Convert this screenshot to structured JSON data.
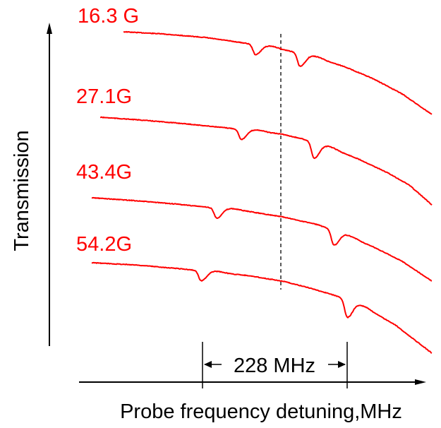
{
  "chart_data": {
    "type": "line",
    "title": "",
    "xlabel": "Probe frequency detuning,MHz",
    "ylabel": "Transmission",
    "colors": {
      "curve": "#ff0000",
      "axis": "#000000"
    },
    "annotation": {
      "label": "228 MHz"
    },
    "series": [
      {
        "name": "16.3 G",
        "dips": [
          {
            "x": 362,
            "depth": 14
          },
          {
            "x": 425,
            "depth": 18
          }
        ],
        "points": [
          [
            175,
            45
          ],
          [
            230,
            48
          ],
          [
            290,
            53
          ],
          [
            340,
            60
          ],
          [
            380,
            66
          ],
          [
            410,
            72
          ],
          [
            450,
            82
          ],
          [
            490,
            95
          ],
          [
            530,
            112
          ],
          [
            570,
            133
          ],
          [
            612,
            162
          ]
        ]
      },
      {
        "name": "27.1G",
        "dips": [
          {
            "x": 342,
            "depth": 14
          },
          {
            "x": 445,
            "depth": 22
          }
        ],
        "points": [
          [
            142,
            166
          ],
          [
            200,
            170
          ],
          [
            260,
            175
          ],
          [
            310,
            180
          ],
          [
            360,
            185
          ],
          [
            400,
            190
          ],
          [
            430,
            197
          ],
          [
            470,
            210
          ],
          [
            510,
            226
          ],
          [
            550,
            245
          ],
          [
            580,
            262
          ],
          [
            612,
            290
          ]
        ]
      },
      {
        "name": "43.4G",
        "dips": [
          {
            "x": 307,
            "depth": 14
          },
          {
            "x": 473,
            "depth": 20
          }
        ],
        "points": [
          [
            130,
            280
          ],
          [
            190,
            284
          ],
          [
            250,
            289
          ],
          [
            300,
            294
          ],
          [
            350,
            299
          ],
          [
            400,
            307
          ],
          [
            450,
            318
          ],
          [
            490,
            333
          ],
          [
            530,
            350
          ],
          [
            570,
            370
          ],
          [
            612,
            398
          ]
        ]
      },
      {
        "name": "54.2G",
        "dips": [
          {
            "x": 285,
            "depth": 14
          },
          {
            "x": 492,
            "depth": 24
          }
        ],
        "points": [
          [
            130,
            372
          ],
          [
            190,
            375
          ],
          [
            250,
            380
          ],
          [
            300,
            385
          ],
          [
            350,
            390
          ],
          [
            400,
            398
          ],
          [
            440,
            408
          ],
          [
            480,
            420
          ],
          [
            520,
            437
          ],
          [
            560,
            460
          ],
          [
            612,
            500
          ]
        ]
      }
    ]
  }
}
